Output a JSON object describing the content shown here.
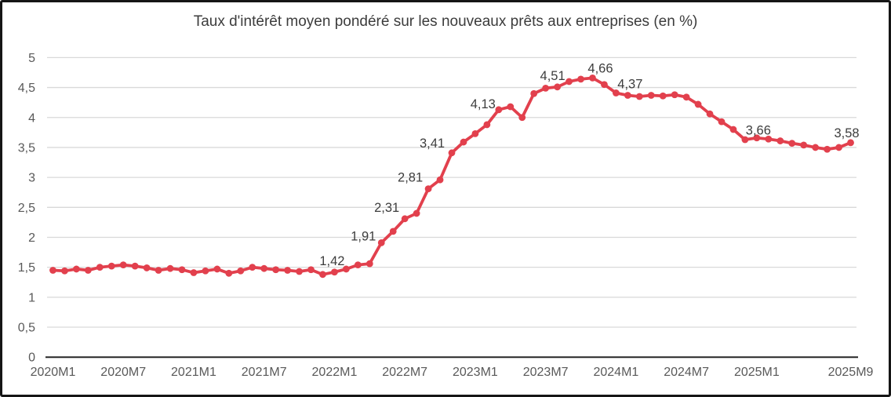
{
  "chart_data": {
    "type": "line",
    "title": "Taux d'intérêt moyen pondéré sur les nouveaux prêts aux entreprises (en %)",
    "xlabel": "",
    "ylabel": "",
    "ylim": [
      0,
      5
    ],
    "grid": "horizontal",
    "legend": "none",
    "decimal_separator": ",",
    "y_ticks": [
      "0",
      "0,5",
      "1",
      "1,5",
      "2",
      "2,5",
      "3",
      "3,5",
      "4",
      "4,5",
      "5"
    ],
    "y_tick_values": [
      0,
      0.5,
      1,
      1.5,
      2,
      2.5,
      3,
      3.5,
      4,
      4.5,
      5
    ],
    "x_tick_labels": [
      "2020M1",
      "2020M7",
      "2021M1",
      "2021M7",
      "2022M1",
      "2022M7",
      "2023M1",
      "2023M7",
      "2024M1",
      "2024M7",
      "2025M1",
      "2025M9"
    ],
    "x_tick_indices": [
      0,
      6,
      12,
      18,
      24,
      30,
      36,
      42,
      48,
      54,
      60,
      68
    ],
    "categories": [
      "2020M1",
      "2020M2",
      "2020M3",
      "2020M4",
      "2020M5",
      "2020M6",
      "2020M7",
      "2020M8",
      "2020M9",
      "2020M10",
      "2020M11",
      "2020M12",
      "2021M1",
      "2021M2",
      "2021M3",
      "2021M4",
      "2021M5",
      "2021M6",
      "2021M7",
      "2021M8",
      "2021M9",
      "2021M10",
      "2021M11",
      "2021M12",
      "2022M1",
      "2022M2",
      "2022M3",
      "2022M4",
      "2022M5",
      "2022M6",
      "2022M7",
      "2022M8",
      "2022M9",
      "2022M10",
      "2022M11",
      "2022M12",
      "2023M1",
      "2023M2",
      "2023M3",
      "2023M4",
      "2023M5",
      "2023M6",
      "2023M7",
      "2023M8",
      "2023M9",
      "2023M10",
      "2023M11",
      "2023M12",
      "2024M1",
      "2024M2",
      "2024M3",
      "2024M4",
      "2024M5",
      "2024M6",
      "2024M7",
      "2024M8",
      "2024M9",
      "2024M10",
      "2024M11",
      "2024M12",
      "2025M1",
      "2025M2",
      "2025M3",
      "2025M4",
      "2025M5",
      "2025M6",
      "2025M7",
      "2025M8",
      "2025M9"
    ],
    "series": [
      {
        "name": "Taux d'intérêt moyen pondéré sur les nouveaux prêts aux entreprises",
        "color": "#e2404d",
        "values": [
          1.45,
          1.44,
          1.47,
          1.45,
          1.5,
          1.52,
          1.54,
          1.52,
          1.49,
          1.45,
          1.48,
          1.46,
          1.41,
          1.44,
          1.47,
          1.4,
          1.44,
          1.5,
          1.48,
          1.46,
          1.45,
          1.43,
          1.46,
          1.38,
          1.42,
          1.47,
          1.54,
          1.56,
          1.91,
          2.1,
          2.31,
          2.4,
          2.81,
          2.96,
          3.41,
          3.59,
          3.73,
          3.88,
          4.13,
          4.18,
          4.0,
          4.4,
          4.49,
          4.51,
          4.6,
          4.64,
          4.66,
          4.55,
          4.41,
          4.37,
          4.35,
          4.37,
          4.36,
          4.38,
          4.34,
          4.22,
          4.06,
          3.93,
          3.8,
          3.63,
          3.66,
          3.64,
          3.61,
          3.57,
          3.54,
          3.5,
          3.47,
          3.5,
          3.58
        ]
      }
    ],
    "point_labels": [
      {
        "index": 24,
        "text": "1,42"
      },
      {
        "index": 28,
        "text": "1,91"
      },
      {
        "index": 30,
        "text": "2,31"
      },
      {
        "index": 32,
        "text": "2,81"
      },
      {
        "index": 34,
        "text": "3,41"
      },
      {
        "index": 38,
        "text": "4,13"
      },
      {
        "index": 43,
        "text": "4,51"
      },
      {
        "index": 46,
        "text": "4,66"
      },
      {
        "index": 49,
        "text": "4,37"
      },
      {
        "index": 60,
        "text": "3,66"
      },
      {
        "index": 68,
        "text": "3,58"
      }
    ],
    "colors": {
      "line": "#e2404d",
      "title": "#3c3c3c",
      "axis_labels": "#595959",
      "data_labels": "#3d3d3d",
      "grid": "#d9d9d9",
      "axis_line": "#262626",
      "background": "#ffffff",
      "frame_border": "#161616"
    }
  }
}
